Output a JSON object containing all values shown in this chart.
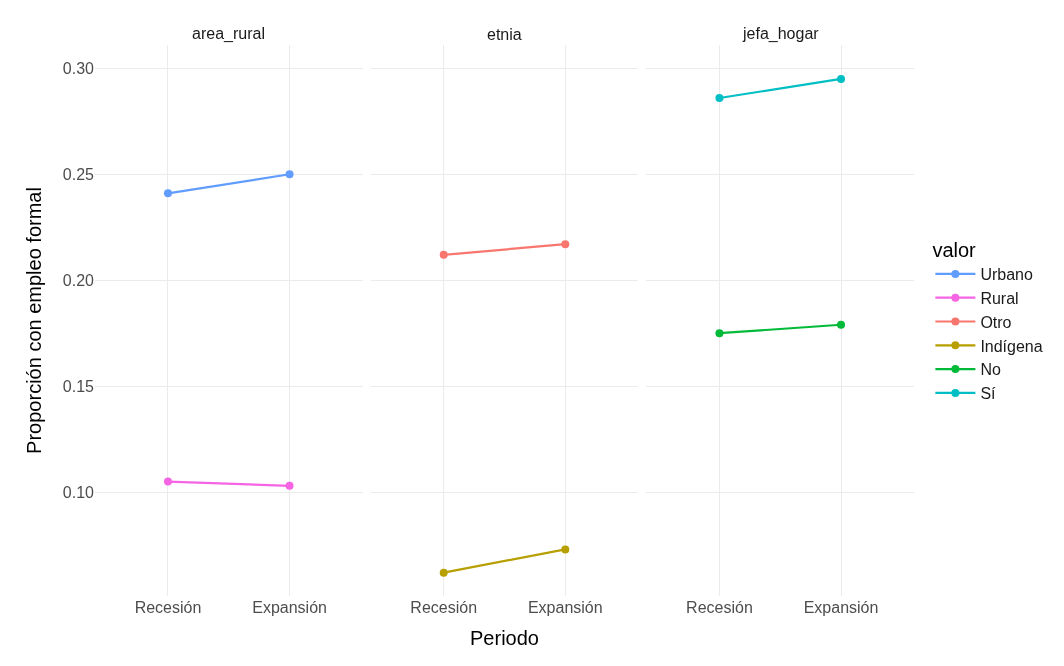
{
  "chart_data": [
    {
      "type": "line",
      "title": "area_rural",
      "ylabel": "Proporción con empleo formal",
      "categories": [
        "Recesión",
        "Expansión"
      ],
      "ylim": [
        0.051,
        0.311
      ],
      "yticks": [
        {
          "value": 0.1,
          "label": "0.10"
        },
        {
          "value": 0.15,
          "label": "0.15"
        },
        {
          "value": 0.2,
          "label": "0.20"
        },
        {
          "value": 0.25,
          "label": "0.25"
        },
        {
          "value": 0.3,
          "label": "0.30"
        }
      ],
      "grid": true,
      "marker": "circle",
      "line_style": "solid",
      "legend": "right",
      "series": [
        {
          "name": "Urbano",
          "color": "#619cff",
          "values": [
            0.241,
            0.25
          ]
        },
        {
          "name": "Rural",
          "color": "#f564e3",
          "values": [
            0.105,
            0.103
          ]
        }
      ]
    },
    {
      "type": "line",
      "title": "etnia",
      "xlabel": "Periodo",
      "categories": [
        "Recesión",
        "Expansión"
      ],
      "ylim": [
        0.051,
        0.311
      ],
      "tick_labels": "x",
      "grid": true,
      "marker": "circle",
      "line_style": "solid",
      "legend": "right",
      "series": [
        {
          "name": "Otro",
          "color": "#f8766d",
          "values": [
            0.212,
            0.217
          ]
        },
        {
          "name": "Indígena",
          "color": "#b79f00",
          "values": [
            0.062,
            0.073
          ]
        }
      ]
    },
    {
      "type": "line",
      "title": "jefa_hogar",
      "legend_title": "valor",
      "categories": [
        "Recesión",
        "Expansión"
      ],
      "ylim": [
        0.051,
        0.311
      ],
      "tick_labels": "x",
      "grid": true,
      "marker": "circle",
      "line_style": "solid",
      "legend": "right",
      "series": [
        {
          "name": "No",
          "color": "#00ba38",
          "values": [
            0.175,
            0.179
          ]
        },
        {
          "name": "Sí",
          "color": "#00bfc4",
          "values": [
            0.286,
            0.295
          ]
        }
      ]
    }
  ]
}
